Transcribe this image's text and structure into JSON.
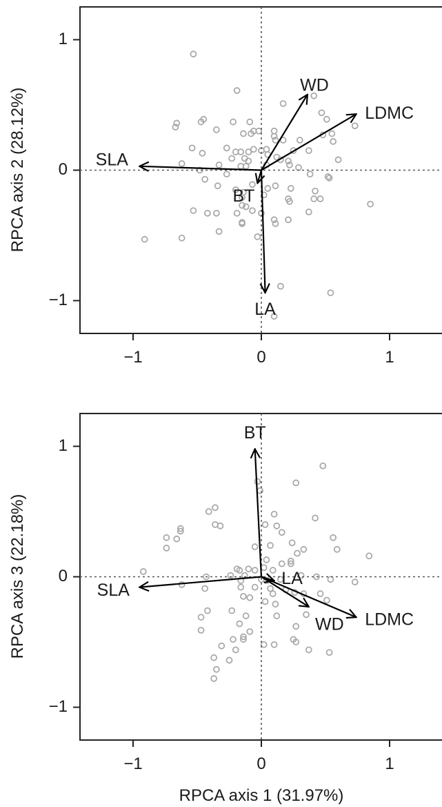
{
  "chart_data": [
    {
      "type": "scatter",
      "subtype": "biplot",
      "xlabel": "",
      "ylabel": "RPCA axis 2 (28.12%)",
      "xlim": [
        -1.4,
        1.4
      ],
      "ylim": [
        -1.25,
        1.25
      ],
      "xticks": [
        -1,
        0,
        1
      ],
      "yticks": [
        -1,
        0,
        1
      ],
      "xtick_labels": [
        "−1",
        "0",
        "1"
      ],
      "ytick_labels": [
        "−1",
        "0",
        "1"
      ],
      "reference_lines": {
        "x": 0,
        "y": 0,
        "style": "dotted"
      },
      "point_color": "#aaaaaa",
      "arrow_color": "#000000",
      "loadings": [
        {
          "label": "SLA",
          "x": -0.95,
          "y": 0.03
        },
        {
          "label": "WD",
          "x": 0.36,
          "y": 0.58
        },
        {
          "label": "LDMC",
          "x": 0.74,
          "y": 0.43
        },
        {
          "label": "BT",
          "x": -0.03,
          "y": -0.1
        },
        {
          "label": "LA",
          "x": 0.03,
          "y": -0.94
        }
      ],
      "points": [
        [
          -0.53,
          0.89
        ],
        [
          -0.19,
          0.61
        ],
        [
          0.41,
          0.57
        ],
        [
          0.17,
          0.51
        ],
        [
          0.47,
          0.44
        ],
        [
          0.51,
          0.39
        ],
        [
          -0.66,
          0.36
        ],
        [
          -0.45,
          0.39
        ],
        [
          -0.47,
          0.37
        ],
        [
          -0.67,
          0.33
        ],
        [
          -0.22,
          0.37
        ],
        [
          -0.09,
          0.37
        ],
        [
          -0.35,
          0.31
        ],
        [
          -0.06,
          0.3
        ],
        [
          -0.02,
          0.3
        ],
        [
          0.1,
          0.3
        ],
        [
          0.73,
          0.34
        ],
        [
          -0.08,
          0.28
        ],
        [
          -0.14,
          0.28
        ],
        [
          0.1,
          0.26
        ],
        [
          0.11,
          0.23
        ],
        [
          0.17,
          0.23
        ],
        [
          0.3,
          0.23
        ],
        [
          0.48,
          0.27
        ],
        [
          0.55,
          0.28
        ],
        [
          0.56,
          0.22
        ],
        [
          -0.54,
          0.17
        ],
        [
          -0.27,
          0.17
        ],
        [
          -0.46,
          0.13
        ],
        [
          -0.2,
          0.14
        ],
        [
          -0.16,
          0.14
        ],
        [
          -0.1,
          0.14
        ],
        [
          -0.06,
          0.16
        ],
        [
          0.0,
          0.15
        ],
        [
          0.04,
          0.16
        ],
        [
          0.25,
          0.15
        ],
        [
          0.37,
          0.15
        ],
        [
          -0.23,
          0.09
        ],
        [
          -0.13,
          0.09
        ],
        [
          -0.1,
          0.07
        ],
        [
          0.05,
          0.12
        ],
        [
          0.12,
          0.1
        ],
        [
          0.15,
          0.08
        ],
        [
          0.21,
          0.07
        ],
        [
          0.6,
          0.08
        ],
        [
          -0.62,
          0.05
        ],
        [
          -0.33,
          0.04
        ],
        [
          -0.16,
          0.03
        ],
        [
          -0.12,
          0.03
        ],
        [
          0.04,
          0.04
        ],
        [
          0.22,
          0.04
        ],
        [
          0.29,
          0.02
        ],
        [
          -0.48,
          0.0
        ],
        [
          -0.27,
          -0.03
        ],
        [
          0.38,
          -0.03
        ],
        [
          0.52,
          -0.05
        ],
        [
          0.53,
          -0.06
        ],
        [
          -0.44,
          -0.07
        ],
        [
          -0.34,
          -0.12
        ],
        [
          -0.07,
          -0.11
        ],
        [
          0.11,
          -0.12
        ],
        [
          0.05,
          -0.14
        ],
        [
          0.23,
          -0.14
        ],
        [
          0.42,
          -0.16
        ],
        [
          -0.2,
          -0.15
        ],
        [
          -0.14,
          -0.17
        ],
        [
          0.02,
          -0.19
        ],
        [
          0.21,
          -0.22
        ],
        [
          0.41,
          -0.22
        ],
        [
          -0.15,
          -0.21
        ],
        [
          0.22,
          -0.24
        ],
        [
          0.46,
          -0.22
        ],
        [
          0.85,
          -0.26
        ],
        [
          -0.15,
          -0.27
        ],
        [
          -0.12,
          -0.28
        ],
        [
          -0.07,
          -0.31
        ],
        [
          -0.53,
          -0.31
        ],
        [
          -0.35,
          -0.33
        ],
        [
          -0.42,
          -0.33
        ],
        [
          -0.19,
          -0.33
        ],
        [
          0.0,
          -0.33
        ],
        [
          0.37,
          -0.32
        ],
        [
          0.1,
          -0.38
        ],
        [
          0.21,
          -0.38
        ],
        [
          -0.15,
          -0.4
        ],
        [
          -0.15,
          -0.41
        ],
        [
          0.11,
          -0.41
        ],
        [
          -0.33,
          -0.47
        ],
        [
          -0.03,
          -0.51
        ],
        [
          -0.91,
          -0.53
        ],
        [
          -0.62,
          -0.52
        ],
        [
          0.15,
          -0.89
        ],
        [
          0.54,
          -0.94
        ],
        [
          0.1,
          -1.12
        ]
      ]
    },
    {
      "type": "scatter",
      "subtype": "biplot",
      "xlabel": "RPCA axis 1 (31.97%)",
      "ylabel": "RPCA axis 3 (22.18%)",
      "xlim": [
        -1.4,
        1.4
      ],
      "ylim": [
        -1.25,
        1.25
      ],
      "xticks": [
        -1,
        0,
        1
      ],
      "yticks": [
        -1,
        0,
        1
      ],
      "xtick_labels": [
        "−1",
        "0",
        "1"
      ],
      "ytick_labels": [
        "−1",
        "0",
        "1"
      ],
      "reference_lines": {
        "x": 0,
        "y": 0,
        "style": "dotted"
      },
      "point_color": "#aaaaaa",
      "arrow_color": "#000000",
      "loadings": [
        {
          "label": "SLA",
          "x": -0.95,
          "y": -0.08
        },
        {
          "label": "BT",
          "x": -0.05,
          "y": 0.98
        },
        {
          "label": "LA",
          "x": 0.1,
          "y": -0.03
        },
        {
          "label": "WD",
          "x": 0.37,
          "y": -0.23
        },
        {
          "label": "LDMC",
          "x": 0.74,
          "y": -0.31
        }
      ],
      "points": [
        [
          0.48,
          0.85
        ],
        [
          -0.03,
          0.73
        ],
        [
          0.27,
          0.72
        ],
        [
          -0.01,
          0.66
        ],
        [
          -0.36,
          0.53
        ],
        [
          -0.41,
          0.5
        ],
        [
          0.1,
          0.48
        ],
        [
          0.42,
          0.45
        ],
        [
          -0.63,
          0.37
        ],
        [
          -0.63,
          0.35
        ],
        [
          -0.36,
          0.4
        ],
        [
          0.03,
          0.4
        ],
        [
          0.12,
          0.39
        ],
        [
          -0.32,
          0.39
        ],
        [
          -0.74,
          0.3
        ],
        [
          -0.66,
          0.29
        ],
        [
          -0.74,
          0.22
        ],
        [
          0.16,
          0.34
        ],
        [
          0.56,
          0.3
        ],
        [
          0.24,
          0.26
        ],
        [
          0.07,
          0.24
        ],
        [
          -0.05,
          0.23
        ],
        [
          0.04,
          0.13
        ],
        [
          0.23,
          0.12
        ],
        [
          0.23,
          0.1
        ],
        [
          0.59,
          0.21
        ],
        [
          0.28,
          0.18
        ],
        [
          0.33,
          0.21
        ],
        [
          0.84,
          0.16
        ],
        [
          0.16,
          0.1
        ],
        [
          0.02,
          0.07
        ],
        [
          -0.19,
          0.06
        ],
        [
          -0.17,
          0.05
        ],
        [
          -0.1,
          0.06
        ],
        [
          -0.05,
          0.05
        ],
        [
          0.09,
          0.05
        ],
        [
          -0.92,
          0.04
        ],
        [
          -0.43,
          0.0
        ],
        [
          -0.24,
          0.01
        ],
        [
          -0.13,
          0.01
        ],
        [
          -0.16,
          -0.03
        ],
        [
          0.0,
          -0.02
        ],
        [
          0.04,
          -0.03
        ],
        [
          0.15,
          -0.02
        ],
        [
          0.31,
          0.01
        ],
        [
          0.43,
          0.0
        ],
        [
          0.54,
          -0.02
        ],
        [
          0.73,
          -0.04
        ],
        [
          -0.62,
          -0.06
        ],
        [
          -0.16,
          -0.08
        ],
        [
          -0.44,
          -0.09
        ],
        [
          -0.05,
          -0.08
        ],
        [
          0.07,
          -0.09
        ],
        [
          0.19,
          -0.1
        ],
        [
          0.26,
          -0.12
        ],
        [
          0.09,
          -0.13
        ],
        [
          -0.14,
          -0.15
        ],
        [
          -0.09,
          -0.16
        ],
        [
          0.33,
          -0.13
        ],
        [
          0.46,
          -0.13
        ],
        [
          0.03,
          -0.19
        ],
        [
          0.11,
          -0.21
        ],
        [
          0.51,
          -0.18
        ],
        [
          -0.23,
          -0.26
        ],
        [
          -0.42,
          -0.26
        ],
        [
          -0.47,
          -0.31
        ],
        [
          0.12,
          -0.3
        ],
        [
          -0.12,
          -0.3
        ],
        [
          0.35,
          -0.29
        ],
        [
          -0.17,
          -0.36
        ],
        [
          -0.47,
          -0.41
        ],
        [
          -0.09,
          -0.42
        ],
        [
          0.27,
          -0.38
        ],
        [
          -0.14,
          -0.46
        ],
        [
          -0.14,
          -0.48
        ],
        [
          -0.22,
          -0.48
        ],
        [
          0.25,
          -0.48
        ],
        [
          0.27,
          -0.5
        ],
        [
          0.02,
          -0.52
        ],
        [
          0.1,
          -0.52
        ],
        [
          -0.31,
          -0.53
        ],
        [
          -0.2,
          -0.56
        ],
        [
          0.37,
          -0.56
        ],
        [
          0.53,
          -0.58
        ],
        [
          -0.37,
          -0.62
        ],
        [
          -0.25,
          -0.64
        ],
        [
          -0.35,
          -0.71
        ],
        [
          -0.37,
          -0.78
        ]
      ]
    }
  ]
}
